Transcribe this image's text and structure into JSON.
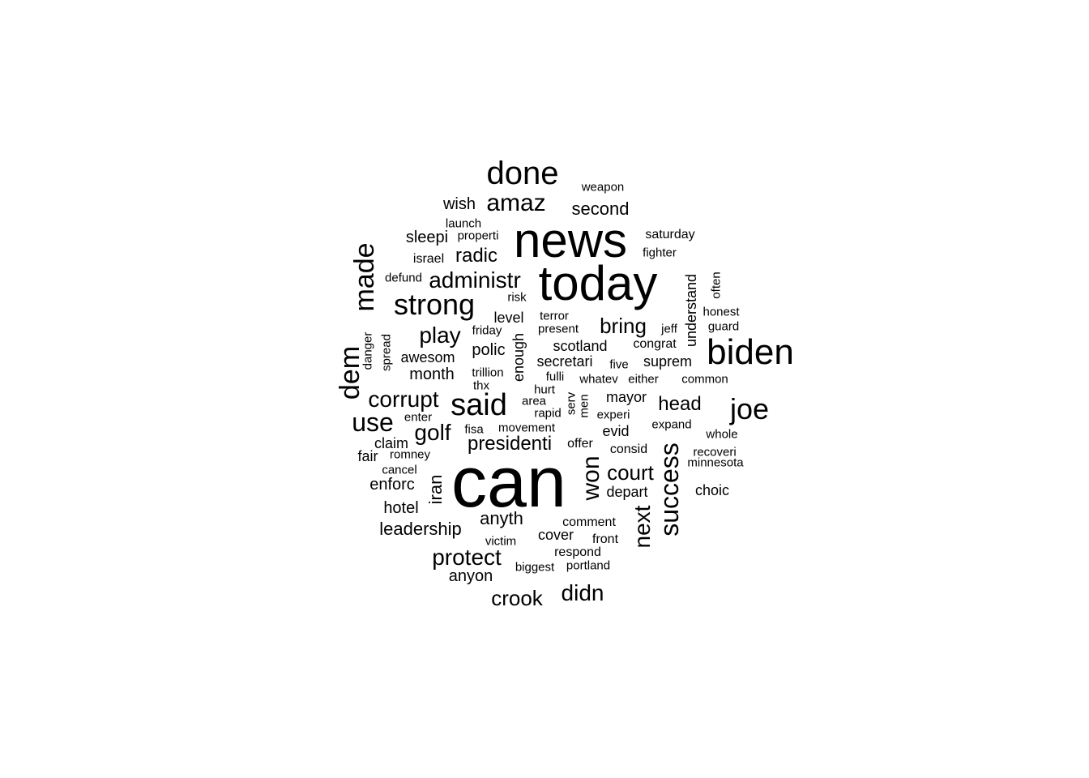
{
  "text_color": "#000000",
  "background": "#ffffff",
  "words": [
    {
      "text": "can"
    },
    {
      "text": "news"
    },
    {
      "text": "today"
    },
    {
      "text": "biden"
    },
    {
      "text": "done"
    },
    {
      "text": "strong"
    },
    {
      "text": "made"
    },
    {
      "text": "said"
    },
    {
      "text": "joe"
    },
    {
      "text": "dem"
    },
    {
      "text": "success"
    },
    {
      "text": "won"
    },
    {
      "text": "amaz"
    },
    {
      "text": "administr"
    },
    {
      "text": "use"
    },
    {
      "text": "next"
    },
    {
      "text": "corrupt"
    },
    {
      "text": "play"
    },
    {
      "text": "golf"
    },
    {
      "text": "protect"
    },
    {
      "text": "crook"
    },
    {
      "text": "didn"
    },
    {
      "text": "bring"
    },
    {
      "text": "court"
    },
    {
      "text": "head"
    },
    {
      "text": "presidenti"
    },
    {
      "text": "radic"
    },
    {
      "text": "anyth"
    },
    {
      "text": "second"
    },
    {
      "text": "leadership"
    },
    {
      "text": "month"
    },
    {
      "text": "polic"
    },
    {
      "text": "iran"
    },
    {
      "text": "hotel"
    },
    {
      "text": "anyon"
    },
    {
      "text": "enforc"
    },
    {
      "text": "wish"
    },
    {
      "text": "sleepi"
    },
    {
      "text": "level"
    },
    {
      "text": "enough"
    },
    {
      "text": "awesom"
    },
    {
      "text": "scotland"
    },
    {
      "text": "secretari"
    },
    {
      "text": "suprem"
    },
    {
      "text": "mayor"
    },
    {
      "text": "evid"
    },
    {
      "text": "depart"
    },
    {
      "text": "understand"
    },
    {
      "text": "fair"
    },
    {
      "text": "claim"
    },
    {
      "text": "cover"
    },
    {
      "text": "choic"
    },
    {
      "text": "israel"
    },
    {
      "text": "saturday"
    },
    {
      "text": "weapon"
    },
    {
      "text": "launch"
    },
    {
      "text": "properti"
    },
    {
      "text": "fighter"
    },
    {
      "text": "defund"
    },
    {
      "text": "risk"
    },
    {
      "text": "terror"
    },
    {
      "text": "present"
    },
    {
      "text": "friday"
    },
    {
      "text": "honest"
    },
    {
      "text": "guard"
    },
    {
      "text": "often"
    },
    {
      "text": "jeff"
    },
    {
      "text": "congrat"
    },
    {
      "text": "danger"
    },
    {
      "text": "spread"
    },
    {
      "text": "five"
    },
    {
      "text": "trillion"
    },
    {
      "text": "fulli"
    },
    {
      "text": "whatev"
    },
    {
      "text": "either"
    },
    {
      "text": "common"
    },
    {
      "text": "thx"
    },
    {
      "text": "hurt"
    },
    {
      "text": "area"
    },
    {
      "text": "serv"
    },
    {
      "text": "men"
    },
    {
      "text": "enter"
    },
    {
      "text": "rapid"
    },
    {
      "text": "experi"
    },
    {
      "text": "expand"
    },
    {
      "text": "fisa"
    },
    {
      "text": "movement"
    },
    {
      "text": "whole"
    },
    {
      "text": "offer"
    },
    {
      "text": "consid"
    },
    {
      "text": "recoveri"
    },
    {
      "text": "romney"
    },
    {
      "text": "minnesota"
    },
    {
      "text": "cancel"
    },
    {
      "text": "comment"
    },
    {
      "text": "front"
    },
    {
      "text": "victim"
    },
    {
      "text": "respond"
    },
    {
      "text": "biggest"
    },
    {
      "text": "portland"
    }
  ]
}
